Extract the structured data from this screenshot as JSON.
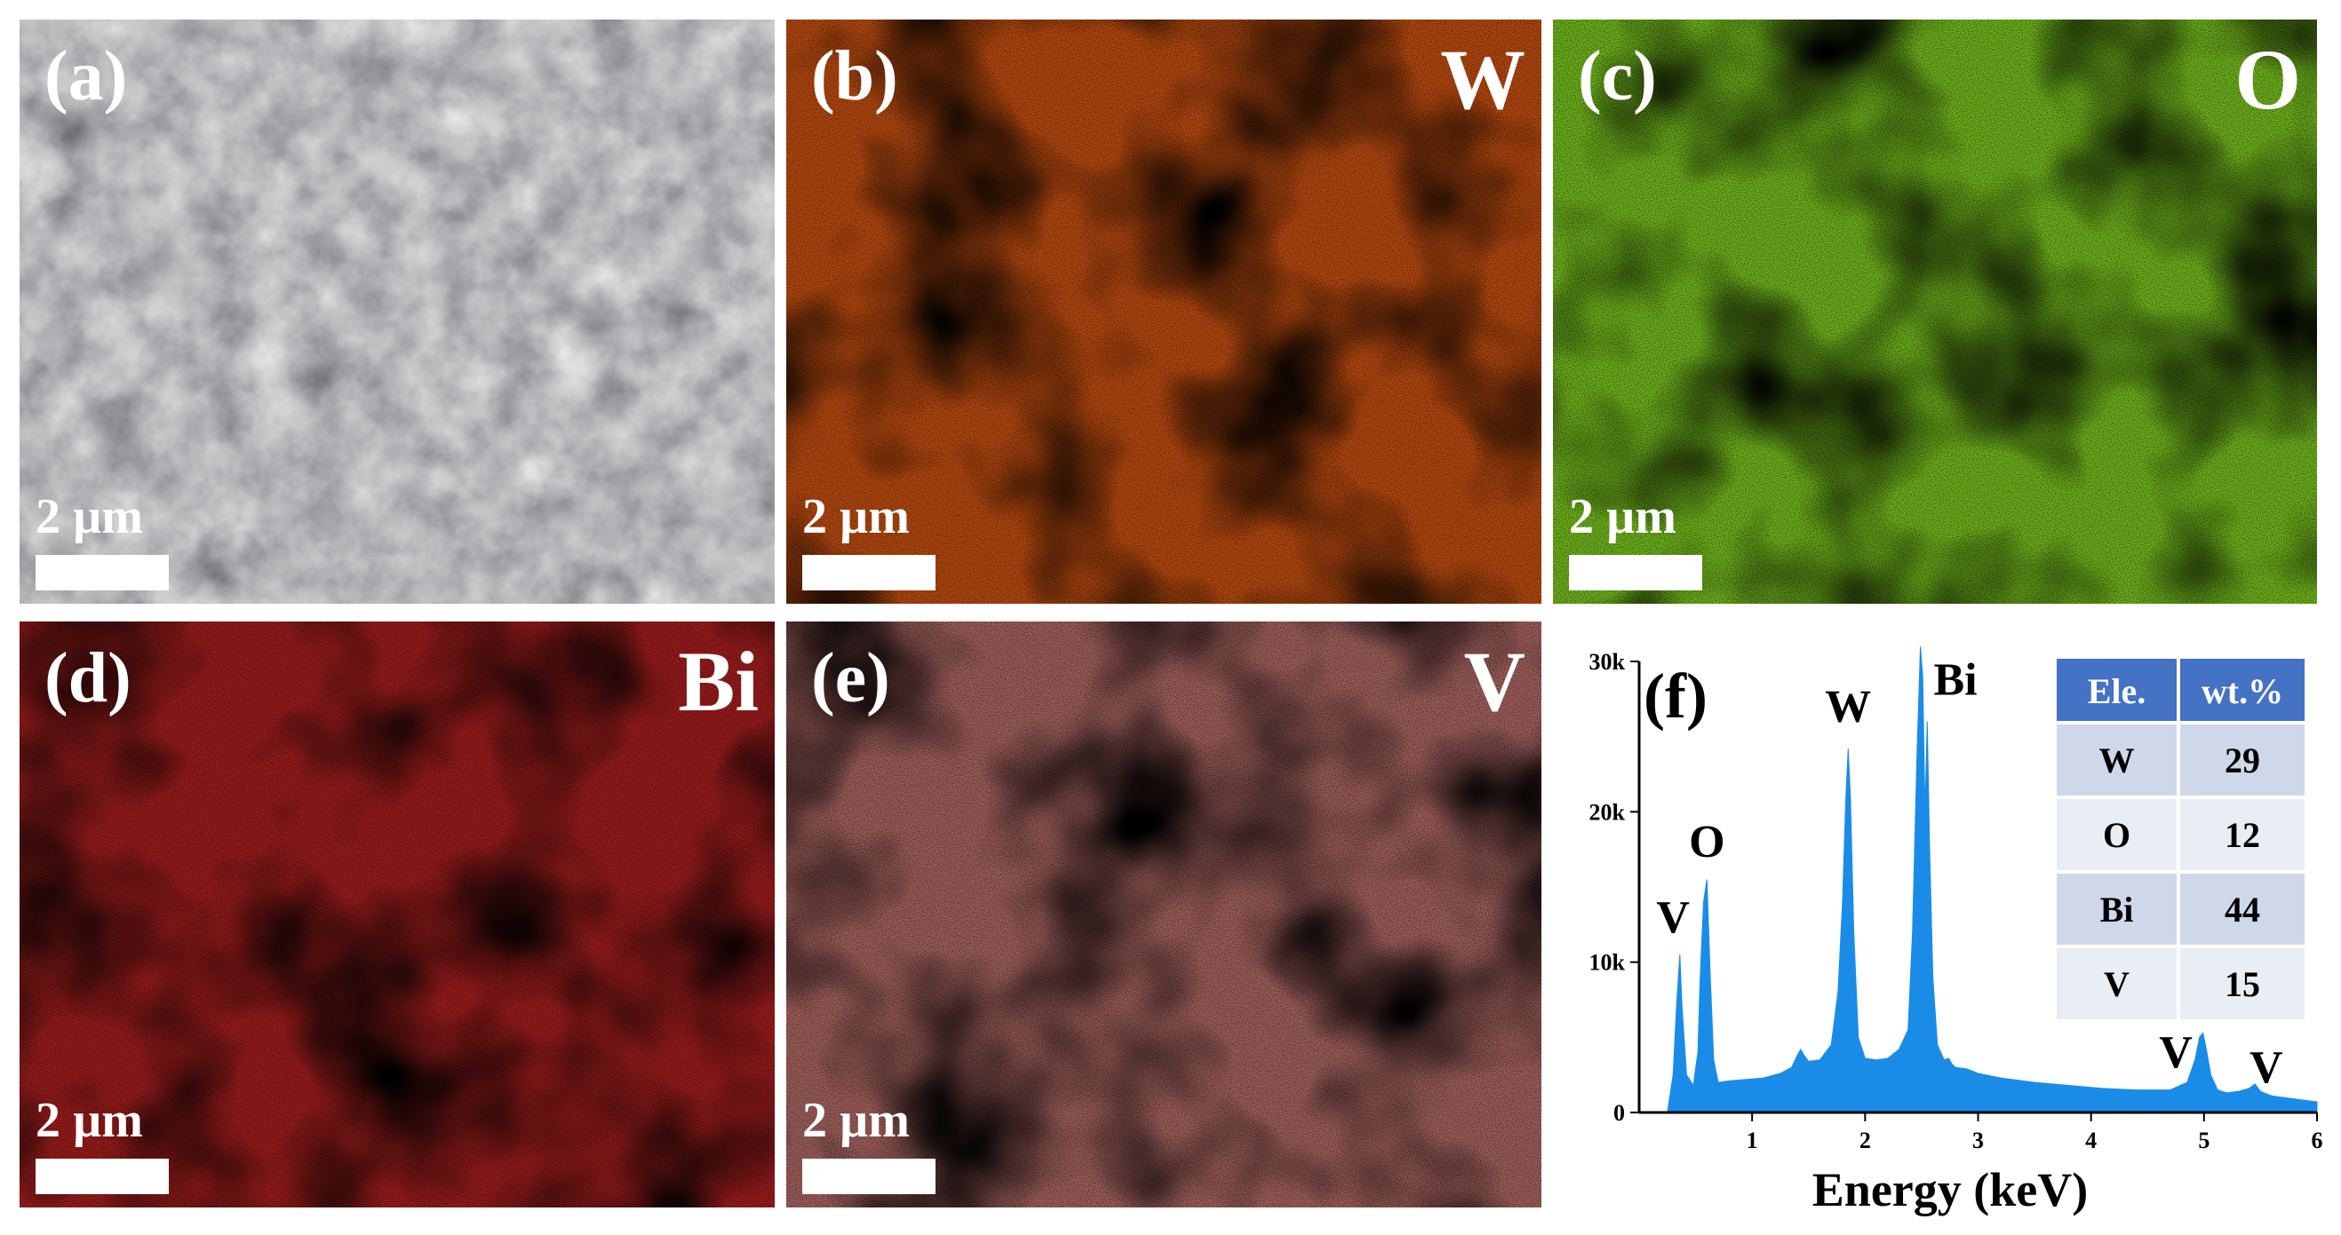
{
  "panels": [
    {
      "id": "a",
      "label": "(a)",
      "element": "",
      "scale_text": "2 µm",
      "kind": "sem"
    },
    {
      "id": "b",
      "label": "(b)",
      "element": "W",
      "scale_text": "2 µm",
      "kind": "map",
      "color": "#b5480f",
      "dark": "#3a1205"
    },
    {
      "id": "c",
      "label": "(c)",
      "element": "O",
      "scale_text": "2 µm",
      "kind": "map",
      "color": "#6fb31c",
      "dark": "#102208"
    },
    {
      "id": "d",
      "label": "(d)",
      "element": "Bi",
      "scale_text": "2 µm",
      "kind": "map",
      "color": "#9c1c1c",
      "dark": "#3b0808"
    },
    {
      "id": "e",
      "label": "(e)",
      "element": "V",
      "scale_text": "2 µm",
      "kind": "map",
      "color": "#a0605c",
      "dark": "#2a1212"
    }
  ],
  "spectrum_panel": {
    "label": "(f)"
  },
  "chart_data": {
    "type": "area",
    "xlabel": "Energy (keV)",
    "ylabel": "",
    "xlim": [
      0,
      6
    ],
    "ylim": [
      0,
      30000
    ],
    "xticks": [
      1,
      2,
      3,
      4,
      5,
      6
    ],
    "yticks": [
      0,
      10000,
      20000,
      30000
    ],
    "ytick_labels": [
      "0",
      "10k",
      "20k",
      "30k"
    ],
    "fill_color": "#1a8ce8",
    "x": [
      0.0,
      0.25,
      0.3,
      0.33,
      0.36,
      0.38,
      0.42,
      0.48,
      0.52,
      0.54,
      0.57,
      0.6,
      0.63,
      0.66,
      0.7,
      0.8,
      0.95,
      1.1,
      1.25,
      1.35,
      1.4,
      1.43,
      1.46,
      1.5,
      1.6,
      1.7,
      1.76,
      1.8,
      1.83,
      1.85,
      1.87,
      1.9,
      1.94,
      2.0,
      2.1,
      2.2,
      2.3,
      2.38,
      2.42,
      2.46,
      2.49,
      2.51,
      2.53,
      2.55,
      2.57,
      2.6,
      2.64,
      2.7,
      2.74,
      2.77,
      2.8,
      2.9,
      3.0,
      3.2,
      3.5,
      3.8,
      4.1,
      4.4,
      4.7,
      4.85,
      4.92,
      4.96,
      4.99,
      5.02,
      5.06,
      5.12,
      5.2,
      5.3,
      5.4,
      5.45,
      5.5,
      5.6,
      5.8,
      6.0
    ],
    "y": [
      0,
      0,
      2500,
      7000,
      10500,
      7000,
      2500,
      1800,
      4000,
      9000,
      14000,
      15500,
      9000,
      3500,
      2000,
      2100,
      2200,
      2300,
      2600,
      3000,
      3800,
      4200,
      3800,
      3400,
      3500,
      4500,
      8000,
      14000,
      21000,
      24200,
      21000,
      12000,
      5000,
      3600,
      3500,
      3600,
      4200,
      5500,
      12000,
      24000,
      31000,
      29000,
      20000,
      26000,
      18000,
      9000,
      4500,
      3500,
      3600,
      3200,
      3000,
      2900,
      2600,
      2300,
      2000,
      1800,
      1600,
      1500,
      1500,
      2000,
      3500,
      5000,
      5300,
      4200,
      2500,
      1500,
      1300,
      1400,
      1600,
      1900,
      1400,
      1100,
      900,
      700
    ],
    "peak_labels": [
      {
        "text": "V",
        "x": 0.3,
        "y": 12000
      },
      {
        "text": "O",
        "x": 0.6,
        "y": 17000
      },
      {
        "text": "W",
        "x": 1.85,
        "y": 26000
      },
      {
        "text": "Bi",
        "x": 2.8,
        "y": 27800
      },
      {
        "text": "V",
        "x": 4.75,
        "y": 3000
      },
      {
        "text": "V",
        "x": 5.55,
        "y": 2000
      }
    ]
  },
  "composition_table": {
    "headers": [
      "Ele.",
      "wt.%"
    ],
    "rows": [
      [
        "W",
        "29"
      ],
      [
        "O",
        "12"
      ],
      [
        "Bi",
        "44"
      ],
      [
        "V",
        "15"
      ]
    ],
    "header_color": "#4472c4",
    "row_colors": [
      "#cfd8ea",
      "#e9edf4"
    ]
  }
}
